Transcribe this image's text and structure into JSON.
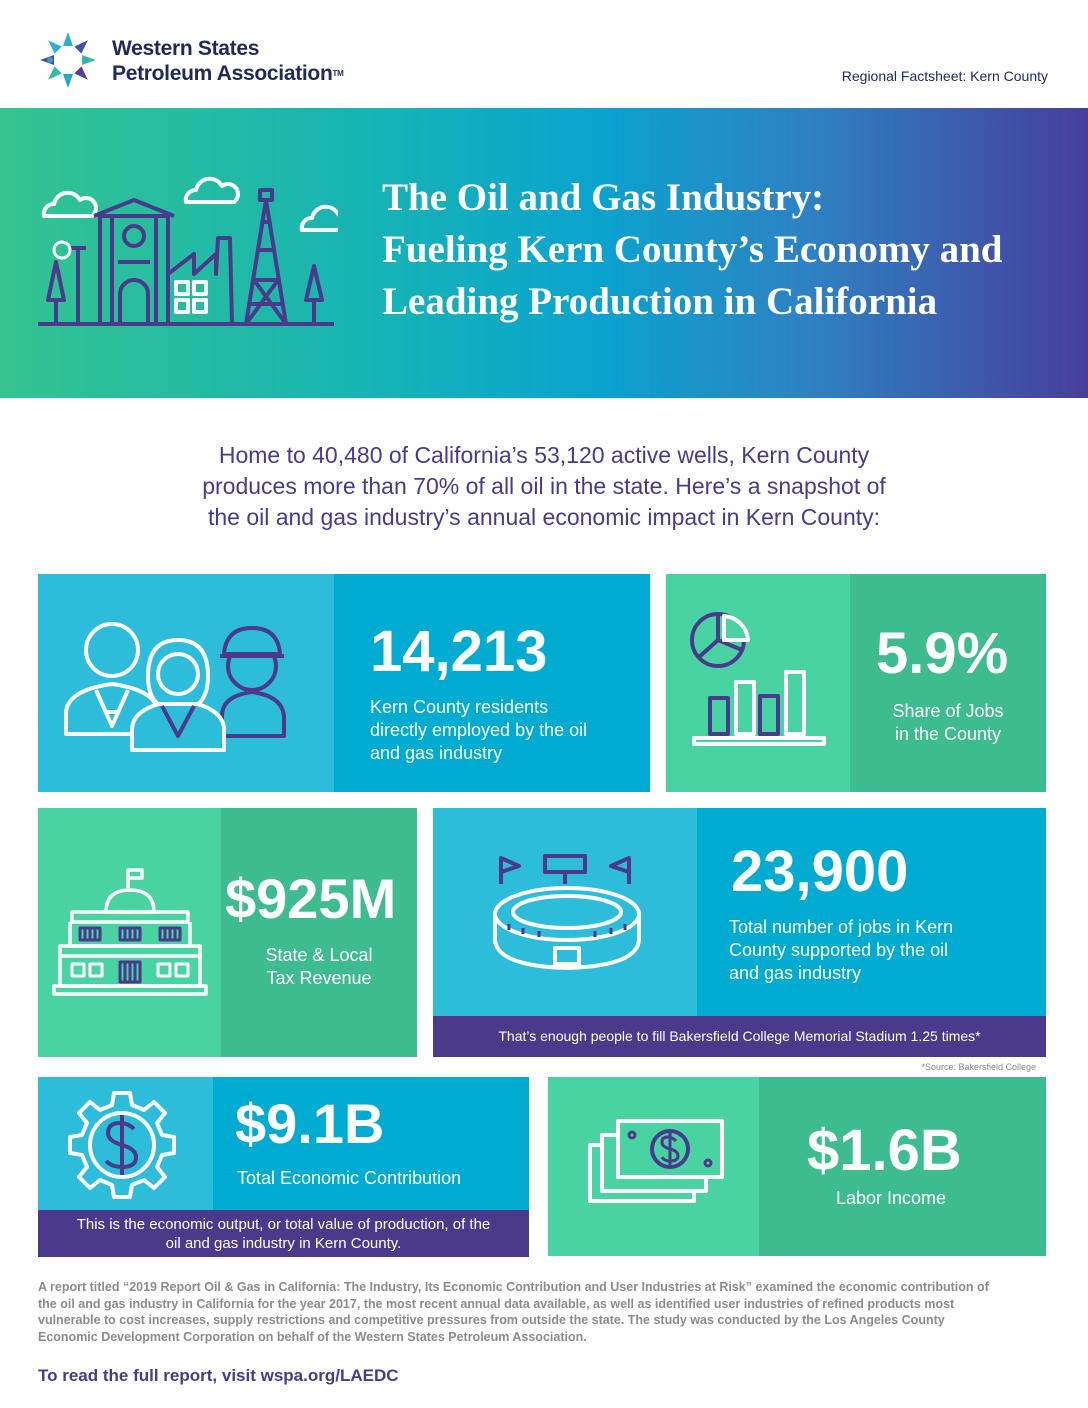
{
  "header": {
    "org_line1": "Western States",
    "org_line2": "Petroleum Association",
    "tm": "TM",
    "factsheet_label": "Regional Factsheet: Kern County"
  },
  "banner": {
    "title_lines": [
      "The Oil and Gas Industry:",
      "Fueling Kern County’s Economy and",
      "Leading Production in California"
    ]
  },
  "intro": {
    "lines": [
      "Home to 40,480 of California’s 53,120 active wells, Kern County",
      "produces more than 70% of all oil in the state. Here’s a snapshot of",
      "the oil and gas industry’s annual economic impact in Kern County:"
    ]
  },
  "stats": {
    "residents": {
      "value": "14,213",
      "desc_lines": [
        "Kern County residents",
        "directly employed by the oil",
        "and gas industry"
      ]
    },
    "jobs_share": {
      "value": "5.9%",
      "desc_lines": [
        "Share of Jobs",
        "in the County"
      ]
    },
    "tax": {
      "value": "$925M",
      "desc_lines": [
        "State & Local",
        "Tax Revenue"
      ]
    },
    "total_jobs": {
      "value": "23,900",
      "desc_lines": [
        "Total number of jobs in Kern",
        "County supported by the oil",
        "and gas industry"
      ],
      "note": "That’s enough people to fill Bakersfield College Memorial Stadium 1.25 times*"
    },
    "source": "*Source: Bakersfield College",
    "contribution": {
      "value": "$9.1B",
      "desc": "Total Economic Contribution",
      "note_lines": [
        "This is the economic output, or total value of production, of the",
        "oil and gas industry in Kern County."
      ]
    },
    "labor": {
      "value": "$1.6B",
      "desc": "Labor Income"
    }
  },
  "footnote": {
    "lines": [
      "A report titled “2019 Report Oil & Gas in California: The Industry, Its Economic Contribution and User Industries at Risk” examined the economic contribution of",
      "the oil and gas industry in California for the year 2017, the most recent annual data available, as well as identified user industries of refined products most",
      "vulnerable to cost increases, supply restrictions and competitive pressures from outside the state. The study was conducted by the Los Angeles County",
      "Economic Development Corporation on behalf of the Western States Petroleum Association."
    ]
  },
  "cta": "To read the full report, visit wspa.org/LAEDC",
  "colors": {
    "purple": "#4b3a8c",
    "blue_light": "#2dbddb",
    "blue_dark": "#00abd1",
    "green_light": "#49d3a2",
    "green_dark": "#3cbc8f"
  }
}
